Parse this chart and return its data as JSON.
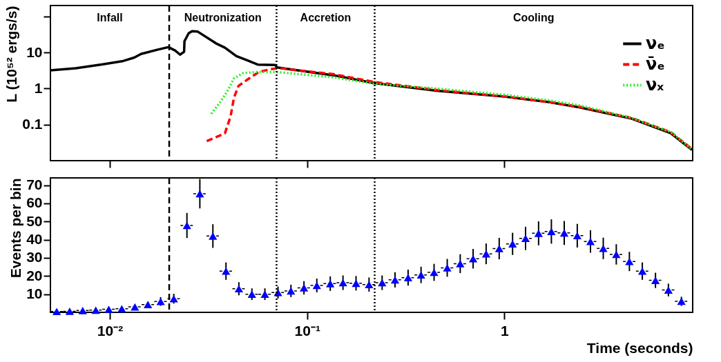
{
  "chart_data": [
    {
      "type": "line",
      "ylabel": "L (10⁵² ergs/s)",
      "xlim": [
        0.005,
        9
      ],
      "ylim": [
        0.01,
        200
      ],
      "log": "xy",
      "yticks": [
        0.1,
        1,
        10,
        {
          "value": 100,
          "label": null
        }
      ],
      "tick_labels": "y",
      "legend": "top right",
      "series": [
        {
          "name": "νₑ",
          "color": "#000000",
          "line_style": "solid",
          "x": [
            0.005,
            0.00671,
            0.00923,
            0.0117,
            0.0133,
            0.0144,
            0.0174,
            0.0198,
            0.0214,
            0.0227,
            0.0238,
            0.0239,
            0.0251,
            0.0261,
            0.0279,
            0.0345,
            0.0383,
            0.0438,
            0.0499,
            0.0562,
            0.069,
            0.0703,
            0.136,
            0.219,
            0.46,
            1.0,
            1.68,
            2.41,
            4.42,
            6.96,
            8.93
          ],
          "values": [
            3.2,
            3.66,
            4.7,
            5.8,
            7.2,
            9.1,
            11.9,
            14.0,
            11.4,
            8.7,
            10.4,
            20.5,
            34,
            38.8,
            37.8,
            17.9,
            13.6,
            7.9,
            6.0,
            4.6,
            4.5,
            3.86,
            2.33,
            1.41,
            0.86,
            0.6,
            0.42,
            0.3,
            0.146,
            0.058,
            0.02
          ]
        },
        {
          "name": "ν̄ₑ",
          "color": "#ff0000",
          "line_style": "dashed",
          "x": [
            0.031,
            0.0383,
            0.0409,
            0.0426,
            0.0449,
            0.0499,
            0.0569,
            0.0649,
            0.0721,
            0.136,
            0.219,
            0.46,
            1.0,
            1.68,
            2.41,
            4.42,
            6.96,
            8.93
          ],
          "values": [
            0.035,
            0.057,
            0.165,
            0.56,
            1.18,
            1.78,
            2.86,
            3.41,
            3.66,
            2.5,
            1.52,
            0.9,
            0.6,
            0.42,
            0.31,
            0.152,
            0.062,
            0.021
          ]
        },
        {
          "name": "νₓ",
          "color": "#22ee22",
          "line_style": "dotted",
          "x": [
            0.0327,
            0.0364,
            0.0394,
            0.0426,
            0.0473,
            0.0555,
            0.0703,
            0.136,
            0.219,
            0.46,
            1.0,
            1.68,
            2.41,
            4.42,
            6.96,
            8.93
          ],
          "values": [
            0.2,
            0.43,
            0.84,
            1.91,
            2.67,
            2.86,
            2.86,
            2.04,
            1.36,
            0.99,
            0.67,
            0.47,
            0.34,
            0.152,
            0.062,
            0.021
          ]
        }
      ],
      "ref_lines": [
        {
          "axis": "x",
          "value": 0.02,
          "line_style": "dashed"
        },
        {
          "axis": "x",
          "value": 0.07,
          "line_style": "dotted"
        },
        {
          "axis": "x",
          "value": 0.22,
          "line_style": "dotted"
        }
      ],
      "annotations": [
        "Infall",
        "Neutronization",
        "Accretion",
        "Cooling"
      ]
    },
    {
      "type": "scatter",
      "xlabel": "Time (seconds)",
      "ylabel": "Events per bin",
      "xlim": [
        0.005,
        9
      ],
      "ylim": [
        0,
        74
      ],
      "log": "x",
      "xticks": [
        {
          "value": 0.01,
          "label": "10⁻²"
        },
        {
          "value": 0.1,
          "label": "10⁻¹"
        },
        1
      ],
      "yticks": [
        10,
        20,
        30,
        40,
        50,
        60,
        70
      ],
      "marker": "triangle",
      "x": [
        0.00538,
        0.00626,
        0.00729,
        0.00849,
        0.00988,
        0.0115,
        0.0134,
        0.0156,
        0.0181,
        0.0211,
        0.0246,
        0.0286,
        0.0333,
        0.0388,
        0.0451,
        0.0525,
        0.0611,
        0.0712,
        0.0828,
        0.0964,
        0.112,
        0.131,
        0.152,
        0.177,
        0.206,
        0.24,
        0.279,
        0.325,
        0.378,
        0.44,
        0.513,
        0.597,
        0.694,
        0.808,
        0.941,
        1.1,
        1.28,
        1.49,
        1.73,
        2.01,
        2.34,
        2.73,
        3.17,
        3.69,
        4.3,
        5.0,
        5.83,
        6.78,
        7.89
      ],
      "ref_lines": [
        {
          "axis": "x",
          "value": 0.02,
          "line_style": "dashed"
        },
        {
          "axis": "x",
          "value": 0.07,
          "line_style": "dotted"
        },
        {
          "axis": "x",
          "value": 0.22,
          "line_style": "dotted"
        }
      ],
      "series": [
        {
          "color": "#0000ff",
          "values": [
            0.5,
            0.6,
            1,
            1.2,
            1.7,
            2,
            3,
            4.3,
            6,
            7.5,
            47.8,
            65.3,
            42,
            22.7,
            13,
            10,
            10,
            10.9,
            11.8,
            13.5,
            14.8,
            15.8,
            16.3,
            16.0,
            15.3,
            16.3,
            17.9,
            19.1,
            20.6,
            22.0,
            24.5,
            26.8,
            29.5,
            32.2,
            35.1,
            37.7,
            40.7,
            43.5,
            44.5,
            43.7,
            42.2,
            39.0,
            35.2,
            31.9,
            28.0,
            22.7,
            17.6,
            12.3,
            6.1
          ],
          "errors": [
            null,
            null,
            null,
            null,
            null,
            null,
            null,
            null,
            2.4,
            2.7,
            6.9,
            8.1,
            6.5,
            4.8,
            3.6,
            3.2,
            3.2,
            3.3,
            3.4,
            3.7,
            3.8,
            4,
            4,
            4,
            3.9,
            4,
            4.2,
            4.4,
            4.5,
            4.7,
            4.9,
            5.2,
            5.4,
            5.7,
            5.9,
            6.1,
            6.4,
            6.6,
            6.7,
            6.6,
            6.5,
            6.2,
            5.9,
            5.6,
            5.3,
            4.8,
            4.2,
            3.5,
            2.5
          ],
          "xerrors": [
            [
              0.005,
              0.0058
            ],
            [
              0.0058,
              0.00675
            ],
            [
              0.00676,
              0.00787
            ],
            [
              0.00787,
              0.00916
            ],
            [
              0.00916,
              0.0107
            ],
            [
              0.0107,
              0.0124
            ],
            [
              0.0124,
              0.0145
            ],
            [
              0.0145,
              0.0168
            ],
            [
              0.0168,
              0.0195
            ],
            [
              0.0196,
              0.0228
            ],
            [
              0.0228,
              0.0265
            ],
            [
              0.0265,
              0.0309
            ],
            [
              0.0309,
              0.0359
            ],
            [
              0.036,
              0.0419
            ],
            [
              0.0418,
              0.0487
            ],
            [
              0.0487,
              0.0566
            ],
            [
              0.0566,
              0.0659
            ],
            [
              0.066,
              0.0768
            ],
            [
              0.0768,
              0.0893
            ],
            [
              0.0894,
              0.104
            ],
            [
              0.104,
              0.121
            ],
            [
              0.121,
              0.141
            ],
            [
              0.141,
              0.164
            ],
            [
              0.164,
              0.191
            ],
            [
              0.191,
              0.222
            ],
            [
              0.222,
              0.259
            ],
            [
              0.259,
              0.301
            ],
            [
              0.301,
              0.351
            ],
            [
              0.35,
              0.408
            ],
            [
              0.408,
              0.475
            ],
            [
              0.476,
              0.553
            ],
            [
              0.553,
              0.644
            ],
            [
              0.643,
              0.749
            ],
            [
              0.749,
              0.872
            ],
            [
              0.872,
              1.02
            ],
            [
              1.02,
              1.19
            ],
            [
              1.19,
              1.38
            ],
            [
              1.38,
              1.61
            ],
            [
              1.6,
              1.87
            ],
            [
              1.86,
              2.17
            ],
            [
              2.17,
              2.52
            ],
            [
              2.53,
              2.95
            ],
            [
              2.94,
              3.42
            ],
            [
              3.42,
              3.98
            ],
            [
              3.99,
              4.64
            ],
            [
              4.64,
              5.4
            ],
            [
              5.4,
              6.29
            ],
            [
              6.29,
              7.32
            ],
            [
              7.31,
              8.51
            ]
          ]
        }
      ]
    }
  ]
}
